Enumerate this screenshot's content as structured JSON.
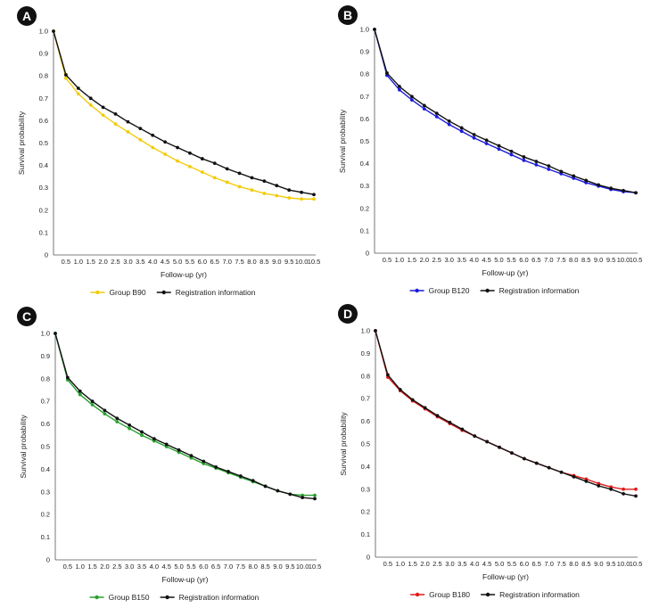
{
  "figure": {
    "panels": [
      "A",
      "B",
      "C",
      "D"
    ]
  },
  "chart_data": [
    {
      "panel": "A",
      "type": "line",
      "title": "",
      "xlabel": "Follow-up (yr)",
      "ylabel": "Survival probability",
      "ylim": [
        0,
        1.0
      ],
      "yticks": [
        "0",
        "0.1",
        "0.2",
        "0.3",
        "0.4",
        "0.5",
        "0.6",
        "0.7",
        "0.8",
        "0.9",
        "1.0"
      ],
      "categories": [
        "0",
        "0.5",
        "1.0",
        "1.5",
        "2.0",
        "2.5",
        "3.0",
        "3.5",
        "4.0",
        "4.5",
        "5.0",
        "5.5",
        "6.0",
        "6.5",
        "7.0",
        "7.5",
        "8.0",
        "8.5",
        "9.0",
        "9.5",
        "10.0",
        "10.5"
      ],
      "x_tick_labels": [
        "0.5",
        "1.0",
        "1.5",
        "2.0",
        "2.5",
        "3.0",
        "3.5",
        "4.0",
        "4.5",
        "5.0",
        "5.5",
        "6.0",
        "6.5",
        "7.0",
        "7.5",
        "8.0",
        "8.5",
        "9.0",
        "9.5",
        "10.0",
        "10.5"
      ],
      "legend_position": "bottom-center",
      "series": [
        {
          "name": "Group B90",
          "color": "#f2cc0c",
          "values": [
            1.0,
            0.79,
            0.72,
            0.67,
            0.625,
            0.585,
            0.55,
            0.515,
            0.48,
            0.45,
            0.42,
            0.395,
            0.37,
            0.345,
            0.325,
            0.305,
            0.29,
            0.275,
            0.265,
            0.255,
            0.25,
            0.25
          ]
        },
        {
          "name": "Registration information",
          "color": "#111111",
          "values": [
            1.0,
            0.805,
            0.745,
            0.7,
            0.66,
            0.63,
            0.595,
            0.565,
            0.535,
            0.505,
            0.48,
            0.455,
            0.43,
            0.41,
            0.385,
            0.365,
            0.345,
            0.33,
            0.31,
            0.29,
            0.28,
            0.27
          ]
        }
      ]
    },
    {
      "panel": "B",
      "type": "line",
      "title": "",
      "xlabel": "Follow-up (yr)",
      "ylabel": "Survival probability",
      "ylim": [
        0,
        1.0
      ],
      "yticks": [
        "0",
        "0.1",
        "0.2",
        "0.3",
        "0.4",
        "0.5",
        "0.6",
        "0.7",
        "0.8",
        "0.9",
        "1.0"
      ],
      "categories": [
        "0",
        "0.5",
        "1.0",
        "1.5",
        "2.0",
        "2.5",
        "3.0",
        "3.5",
        "4.0",
        "4.5",
        "5.0",
        "5.5",
        "6.0",
        "6.5",
        "7.0",
        "7.5",
        "8.0",
        "8.5",
        "9.0",
        "9.5",
        "10.0",
        "10.5"
      ],
      "x_tick_labels": [
        "0.5",
        "1.0",
        "1.5",
        "2.0",
        "2.5",
        "3.0",
        "3.5",
        "4.0",
        "4.5",
        "5.0",
        "5.5",
        "6.0",
        "6.5",
        "7.0",
        "7.5",
        "8.0",
        "8.5",
        "9.0",
        "9.5",
        "10.0",
        "10.5"
      ],
      "legend_position": "bottom-center",
      "series": [
        {
          "name": "Group B120",
          "color": "#1a1adc",
          "values": [
            1.0,
            0.795,
            0.73,
            0.685,
            0.645,
            0.61,
            0.575,
            0.545,
            0.515,
            0.49,
            0.465,
            0.44,
            0.415,
            0.395,
            0.375,
            0.355,
            0.335,
            0.315,
            0.3,
            0.285,
            0.275,
            0.27
          ]
        },
        {
          "name": "Registration information",
          "color": "#111111",
          "values": [
            1.0,
            0.805,
            0.745,
            0.7,
            0.66,
            0.625,
            0.59,
            0.56,
            0.53,
            0.505,
            0.48,
            0.455,
            0.43,
            0.41,
            0.39,
            0.365,
            0.345,
            0.325,
            0.305,
            0.29,
            0.28,
            0.27
          ]
        }
      ]
    },
    {
      "panel": "C",
      "type": "line",
      "title": "",
      "xlabel": "Follow-up (yr)",
      "ylabel": "Survival probability",
      "ylim": [
        0,
        1.0
      ],
      "yticks": [
        "0",
        "0.1",
        "0.2",
        "0.3",
        "0.4",
        "0.5",
        "0.6",
        "0.7",
        "0.8",
        "0.9",
        "1.0"
      ],
      "categories": [
        "0",
        "0.5",
        "1.0",
        "1.5",
        "2.0",
        "2.5",
        "3.0",
        "3.5",
        "4.0",
        "4.5",
        "5.0",
        "5.5",
        "6.0",
        "6.5",
        "7.0",
        "7.5",
        "8.0",
        "8.5",
        "9.0",
        "9.5",
        "10.0",
        "10.5"
      ],
      "x_tick_labels": [
        "0.5",
        "1.0",
        "1.5",
        "2.0",
        "2.5",
        "3.0",
        "3.5",
        "4.0",
        "4.5",
        "5.0",
        "5.5",
        "6.0",
        "6.5",
        "7.0",
        "7.5",
        "8.0",
        "8.5",
        "9.0",
        "9.5",
        "10.0",
        "10.5"
      ],
      "legend_position": "bottom-center",
      "series": [
        {
          "name": "Group B150",
          "color": "#27a02c",
          "values": [
            1.0,
            0.795,
            0.73,
            0.685,
            0.645,
            0.61,
            0.58,
            0.55,
            0.525,
            0.5,
            0.475,
            0.45,
            0.425,
            0.405,
            0.385,
            0.365,
            0.345,
            0.325,
            0.305,
            0.29,
            0.285,
            0.285
          ]
        },
        {
          "name": "Registration information",
          "color": "#111111",
          "values": [
            1.0,
            0.805,
            0.745,
            0.7,
            0.66,
            0.625,
            0.595,
            0.565,
            0.535,
            0.51,
            0.485,
            0.46,
            0.435,
            0.41,
            0.39,
            0.37,
            0.35,
            0.325,
            0.305,
            0.29,
            0.275,
            0.27
          ]
        }
      ]
    },
    {
      "panel": "D",
      "type": "line",
      "title": "",
      "xlabel": "Follow-up (yr)",
      "ylabel": "Survival probability",
      "ylim": [
        0,
        1.0
      ],
      "yticks": [
        "0",
        "0.1",
        "0.2",
        "0.3",
        "0.4",
        "0.5",
        "0.6",
        "0.7",
        "0.8",
        "0.9",
        "1.0"
      ],
      "categories": [
        "0",
        "0.5",
        "1.0",
        "1.5",
        "2.0",
        "2.5",
        "3.0",
        "3.5",
        "4.0",
        "4.5",
        "5.0",
        "5.5",
        "6.0",
        "6.5",
        "7.0",
        "7.5",
        "8.0",
        "8.5",
        "9.0",
        "9.5",
        "10.0",
        "10.5"
      ],
      "x_tick_labels": [
        "0.5",
        "1.0",
        "1.5",
        "2.0",
        "2.5",
        "3.0",
        "3.5",
        "4.0",
        "4.5",
        "5.0",
        "5.5",
        "6.0",
        "6.5",
        "7.0",
        "7.5",
        "8.0",
        "8.5",
        "9.0",
        "9.5",
        "10.0",
        "10.5"
      ],
      "legend_position": "bottom-center",
      "series": [
        {
          "name": "Group B180",
          "color": "#e11b1b",
          "values": [
            1.0,
            0.795,
            0.735,
            0.69,
            0.655,
            0.62,
            0.59,
            0.56,
            0.535,
            0.51,
            0.485,
            0.46,
            0.435,
            0.415,
            0.395,
            0.375,
            0.36,
            0.345,
            0.325,
            0.31,
            0.3,
            0.3
          ]
        },
        {
          "name": "Registration information",
          "color": "#111111",
          "values": [
            1.0,
            0.805,
            0.74,
            0.695,
            0.66,
            0.625,
            0.595,
            0.565,
            0.535,
            0.51,
            0.485,
            0.46,
            0.435,
            0.415,
            0.395,
            0.375,
            0.355,
            0.335,
            0.315,
            0.3,
            0.28,
            0.27
          ]
        }
      ]
    }
  ]
}
